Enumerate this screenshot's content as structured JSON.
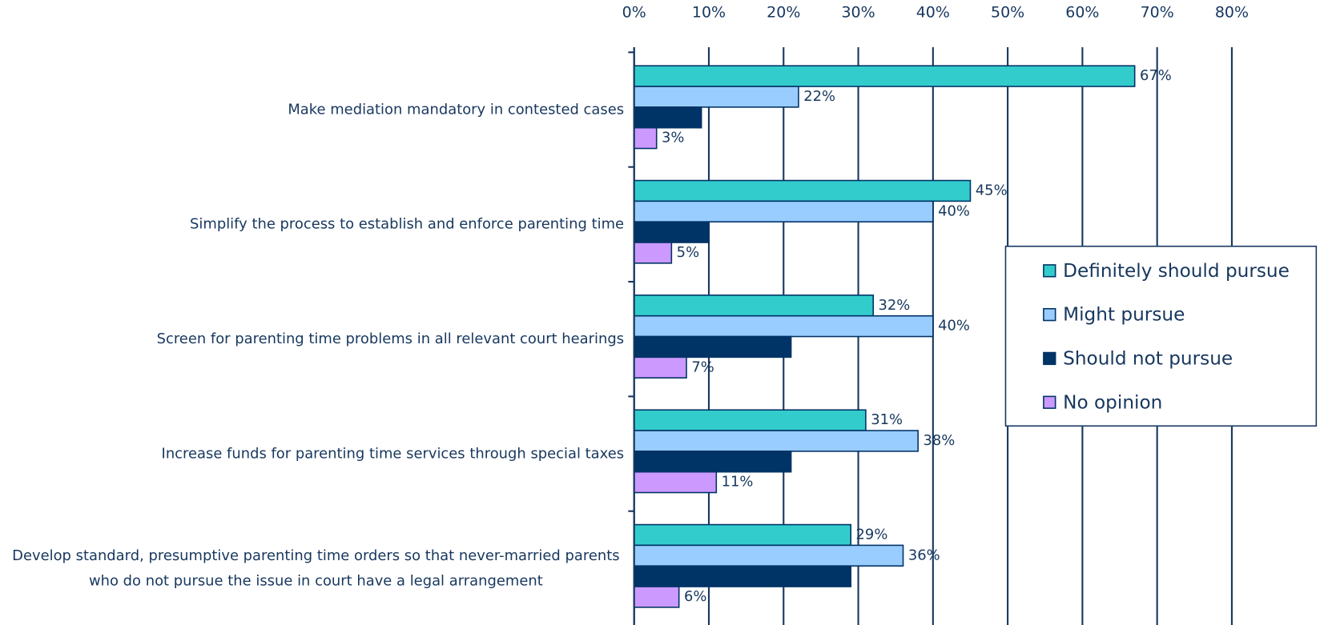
{
  "chart_data": {
    "type": "hbar",
    "categories": [
      "Make mediation mandatory in contested cases",
      "Simplify the process to establish and enforce parenting time",
      "Screen for parenting time problems in all relevant court hearings",
      "Increase funds for parenting time services through special taxes",
      "Develop standard, presumptive parenting time orders so that never-married parents who do not pursue the issue in court have a legal arrangement"
    ],
    "series": [
      {
        "name": "Definitely should pursue",
        "color": "#33cccc",
        "values": [
          67,
          45,
          32,
          31,
          29
        ],
        "value_labels": [
          "67%",
          "45%",
          "32%",
          "31%",
          "29%"
        ]
      },
      {
        "name": "Might pursue",
        "color": "#99ccff",
        "values": [
          22,
          40,
          40,
          38,
          36
        ],
        "value_labels": [
          "22%",
          "40%",
          "40%",
          "38%",
          "36%"
        ]
      },
      {
        "name": "Should not pursue",
        "color": "#003366",
        "values": [
          9,
          10,
          21,
          21,
          29
        ]
      },
      {
        "name": "No opinion",
        "color": "#cc99ff",
        "values": [
          3,
          5,
          7,
          11,
          6
        ],
        "value_labels": [
          "3%",
          "5%",
          "7%",
          "11%",
          "6%"
        ]
      }
    ],
    "xlim": [
      0,
      80
    ],
    "xticks": [
      {
        "value": 0,
        "label": "0%"
      },
      {
        "value": 10,
        "label": "10%"
      },
      {
        "value": 20,
        "label": "20%"
      },
      {
        "value": 30,
        "label": "30%"
      },
      {
        "value": 40,
        "label": "40%"
      },
      {
        "value": 50,
        "label": "50%"
      },
      {
        "value": 60,
        "label": "60%"
      },
      {
        "value": 70,
        "label": "70%"
      },
      {
        "value": 80,
        "label": "80%"
      }
    ],
    "grid": true,
    "legend": "right"
  }
}
